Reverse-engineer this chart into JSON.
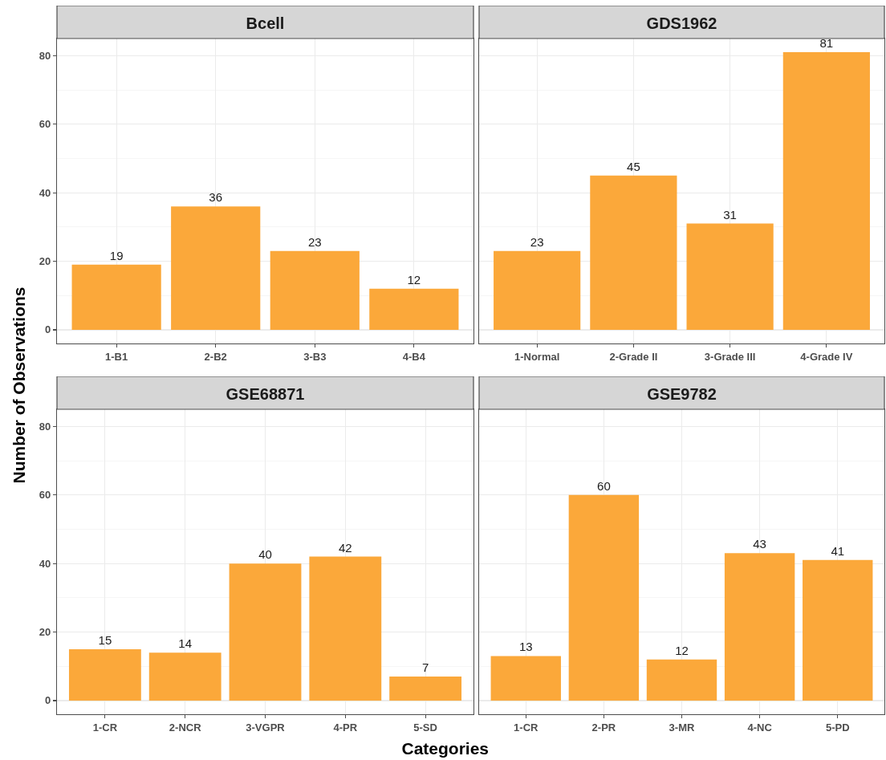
{
  "chart_data": [
    {
      "type": "bar",
      "title": "Bcell",
      "categories": [
        "1-B1",
        "2-B2",
        "3-B3",
        "4-B4"
      ],
      "values": [
        19,
        36,
        23,
        12
      ],
      "color": "#fba83a",
      "ylim": [
        -4,
        85
      ],
      "yticks": [
        0,
        20,
        40,
        60,
        80
      ],
      "grid": true,
      "data_labels": true,
      "ylabel": "Number of Observations"
    },
    {
      "type": "bar",
      "title": "GDS1962",
      "categories": [
        "1-Normal",
        "2-Grade II",
        "3-Grade III",
        "4-Grade IV"
      ],
      "values": [
        23,
        45,
        31,
        81
      ],
      "color": "#fba83a",
      "ylim": [
        -4,
        85
      ],
      "yticks": [
        0,
        20,
        40,
        60,
        80
      ],
      "grid": true,
      "data_labels": true,
      "tick_labels": "x"
    },
    {
      "type": "bar",
      "title": "GSE68871",
      "categories": [
        "1-CR",
        "2-NCR",
        "3-VGPR",
        "4-PR",
        "5-SD"
      ],
      "values": [
        15,
        14,
        40,
        42,
        7
      ],
      "color": "#fba83a",
      "ylim": [
        -4,
        85
      ],
      "yticks": [
        0,
        20,
        40,
        60,
        80
      ],
      "grid": true,
      "data_labels": true,
      "xlabel": "Categories"
    },
    {
      "type": "bar",
      "title": "GSE9782",
      "categories": [
        "1-CR",
        "2-PR",
        "3-MR",
        "4-NC",
        "5-PD"
      ],
      "values": [
        13,
        60,
        12,
        43,
        41
      ],
      "color": "#fba83a",
      "ylim": [
        -4,
        85
      ],
      "yticks": [
        0,
        20,
        40,
        60,
        80
      ],
      "grid": true,
      "data_labels": true,
      "tick_labels": "x"
    }
  ]
}
